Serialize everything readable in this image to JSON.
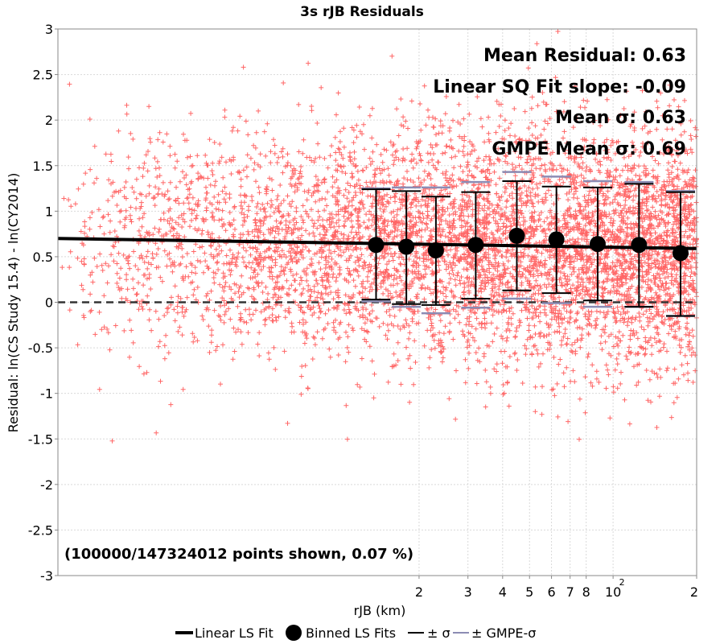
{
  "chart_data": {
    "type": "scatter",
    "title": "3s rJB Residuals",
    "xlabel": "rJB (km)",
    "ylabel": "Residual: ln(CS Study 15.4) - ln(CY2014)",
    "xscale": "log",
    "xlim": [
      1.0,
      200
    ],
    "ylim": [
      -3,
      3
    ],
    "grid": true,
    "y_ticks": [
      -3,
      -2.5,
      -2,
      -1.5,
      -1,
      -0.5,
      0,
      0.5,
      1,
      1.5,
      2,
      2.5,
      3
    ],
    "y_tick_labels": [
      "-3",
      "-2.5",
      "-2",
      "-1.5",
      "-1",
      "-0.5",
      "0",
      "0.5",
      "1",
      "1.5",
      "2",
      "2.5",
      "3"
    ],
    "x_ticks": [
      {
        "value": 20,
        "label": "2"
      },
      {
        "value": 30,
        "label": "3"
      },
      {
        "value": 40,
        "label": "4"
      },
      {
        "value": 50,
        "label": "5"
      },
      {
        "value": 60,
        "label": "6"
      },
      {
        "value": 70,
        "label": "7"
      },
      {
        "value": 80,
        "label": "8"
      },
      {
        "value": 100,
        "label": "10",
        "sup": "2"
      },
      {
        "value": 200,
        "label": "2"
      }
    ],
    "linear_fit": {
      "name": "Linear LS Fit",
      "start": [
        1.0,
        0.7
      ],
      "end": [
        200,
        0.59
      ]
    },
    "zero_line": 0,
    "binned": {
      "name": "Binned LS Fits",
      "x": [
        14.0,
        18.0,
        23.0,
        32.0,
        45.0,
        62.5,
        88.0,
        124.0,
        175.0
      ],
      "mean": [
        0.63,
        0.61,
        0.57,
        0.63,
        0.73,
        0.69,
        0.64,
        0.63,
        0.54
      ],
      "sigma_upper": [
        1.24,
        1.22,
        1.16,
        1.21,
        1.33,
        1.27,
        1.26,
        1.3,
        1.21
      ],
      "sigma_lower": [
        0.03,
        -0.02,
        -0.03,
        0.04,
        0.13,
        0.1,
        0.02,
        -0.05,
        -0.15
      ],
      "gmpe_upper": [
        1.25,
        1.26,
        1.26,
        1.32,
        1.43,
        1.38,
        1.33,
        1.32,
        1.22
      ],
      "gmpe_lower": [
        0.01,
        -0.05,
        -0.12,
        -0.06,
        0.04,
        -0.01,
        -0.05,
        -0.05,
        -0.15
      ]
    },
    "scatter": {
      "sample_size": 6000,
      "residual_mean": 0.63,
      "residual_sigma": 0.63
    },
    "annotations": [
      "Mean Residual: 0.63",
      "Linear SQ Fit slope: -0.09",
      "Mean σ: 0.63",
      "GMPE Mean σ: 0.69"
    ],
    "note": "(100000/147324012 points shown, 0.07 %)",
    "legend": {
      "placement": "bottom",
      "entries": [
        "Linear LS Fit",
        "Binned LS Fits",
        "± σ",
        "± GMPE-σ"
      ]
    },
    "colors": {
      "scatter": "#ff4b4b",
      "fit": "#000000",
      "gmpe": "#8c8cb4",
      "grid": "#d9d9d9",
      "zero": "#333333"
    }
  }
}
